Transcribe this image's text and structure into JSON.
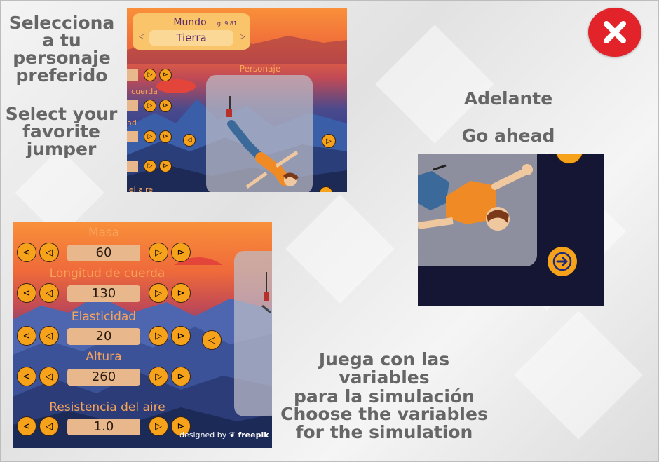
{
  "left_heading_es": "Selecciona\na tu\npersonaje\npreferido",
  "left_heading_en": "Select your\nfavorite\njumper",
  "ahead_es": "Adelante",
  "ahead_en": "Go ahead",
  "vars_es": "Juega con las variables\npara la simulación",
  "vars_en": "Choose the variables\nfor the simulation",
  "screen_top": {
    "world_label": "Mundo",
    "gravity_label": "g: 9.81",
    "world_value": "Tierra",
    "character_label": "Personaje",
    "partial_labels": [
      "cuerda",
      "ad",
      "el aire"
    ]
  },
  "screen_vars": {
    "fields": [
      {
        "label": "Masa",
        "value": "60"
      },
      {
        "label": "Longitud de cuerda",
        "value": "130"
      },
      {
        "label": "Elasticidad",
        "value": "20"
      },
      {
        "label": "Altura",
        "value": "260"
      },
      {
        "label": "Resistencia del aire",
        "value": "1.0"
      }
    ],
    "credit": "designed by",
    "credit_brand": "freepik"
  },
  "colors": {
    "close": "#e3232a",
    "button": "#f7a21b",
    "label": "#f8a45a",
    "value_box": "#e8b78c",
    "text": "#666666"
  },
  "icons": [
    "close-icon",
    "arrow-left-icon",
    "double-arrow-left-icon",
    "arrow-right-icon",
    "double-arrow-right-icon",
    "next-arrow-icon"
  ]
}
